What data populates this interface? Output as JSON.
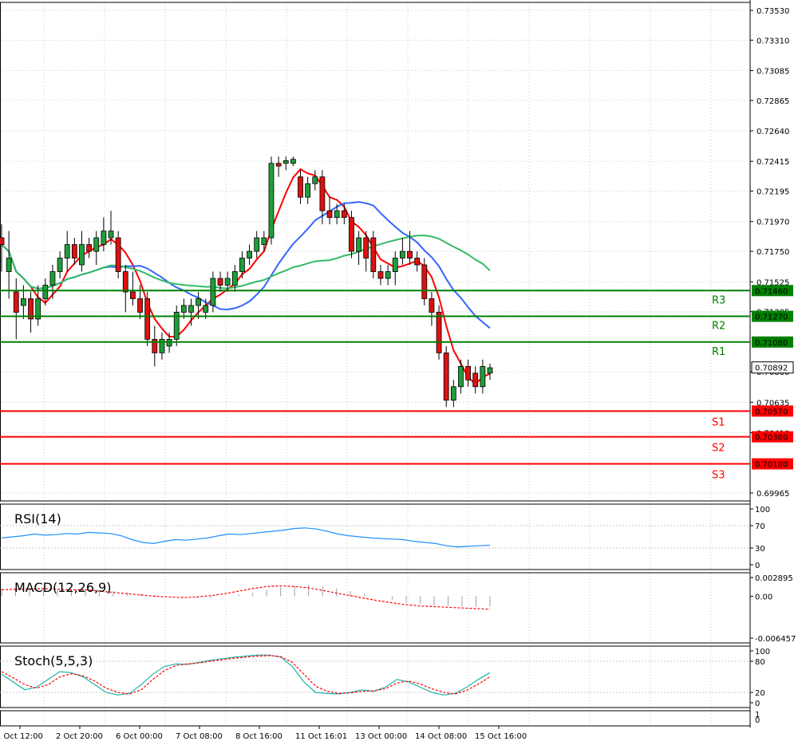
{
  "chart_data": {
    "type": "candlestick",
    "price_axis_ticks": [
      "0.73530",
      "0.73310",
      "0.73085",
      "0.72865",
      "0.72640",
      "0.72415",
      "0.72195",
      "0.71970",
      "0.71750",
      "0.71525",
      "0.71305",
      "0.70860",
      "0.70635",
      "0.70410",
      "0.69965"
    ],
    "price_range": [
      0.69965,
      0.7353
    ],
    "time_labels": [
      "1 Oct 12:00",
      "2 Oct 20:00",
      "6 Oct 00:00",
      "7 Oct 08:00",
      "8 Oct 16:00",
      "11 Oct 16:01",
      "13 Oct 00:00",
      "14 Oct 08:00",
      "15 Oct 16:00"
    ],
    "current_price": "0.70892",
    "levels": [
      {
        "name": "R3",
        "value": "0.71460",
        "color": "#008000"
      },
      {
        "name": "R2",
        "value": "0.71270",
        "color": "#008000"
      },
      {
        "name": "R1",
        "value": "0.71080",
        "color": "#008000"
      },
      {
        "name": "S1",
        "value": "0.70570",
        "color": "#ff0000"
      },
      {
        "name": "S2",
        "value": "0.70380",
        "color": "#ff0000"
      },
      {
        "name": "S3",
        "value": "0.70180",
        "color": "#ff0000"
      }
    ],
    "candles": [
      [
        0.7185,
        0.718,
        0.716,
        0.7195
      ],
      [
        0.716,
        0.717,
        0.714,
        0.719
      ],
      [
        0.7145,
        0.713,
        0.711,
        0.7155
      ],
      [
        0.7135,
        0.714,
        0.7125,
        0.715
      ],
      [
        0.714,
        0.7125,
        0.7115,
        0.7145
      ],
      [
        0.7125,
        0.714,
        0.712,
        0.715
      ],
      [
        0.714,
        0.715,
        0.7135,
        0.7155
      ],
      [
        0.715,
        0.716,
        0.714,
        0.7165
      ],
      [
        0.716,
        0.717,
        0.7155,
        0.7175
      ],
      [
        0.717,
        0.718,
        0.716,
        0.719
      ],
      [
        0.718,
        0.717,
        0.7165,
        0.7185
      ],
      [
        0.7165,
        0.718,
        0.716,
        0.719
      ],
      [
        0.718,
        0.7175,
        0.717,
        0.7185
      ],
      [
        0.7175,
        0.7185,
        0.7165,
        0.719
      ],
      [
        0.718,
        0.719,
        0.7175,
        0.72
      ],
      [
        0.7185,
        0.719,
        0.718,
        0.7205
      ],
      [
        0.7185,
        0.716,
        0.7155,
        0.719
      ],
      [
        0.716,
        0.7145,
        0.713,
        0.7165
      ],
      [
        0.7145,
        0.714,
        0.7135,
        0.716
      ],
      [
        0.714,
        0.713,
        0.7125,
        0.715
      ],
      [
        0.714,
        0.711,
        0.7105,
        0.7145
      ],
      [
        0.711,
        0.71,
        0.709,
        0.712
      ],
      [
        0.71,
        0.711,
        0.7095,
        0.7115
      ],
      [
        0.7105,
        0.711,
        0.71,
        0.7115
      ],
      [
        0.711,
        0.713,
        0.7105,
        0.7135
      ],
      [
        0.713,
        0.7135,
        0.7125,
        0.714
      ],
      [
        0.713,
        0.7135,
        0.712,
        0.714
      ],
      [
        0.7135,
        0.714,
        0.7125,
        0.7145
      ],
      [
        0.713,
        0.7135,
        0.7125,
        0.714
      ],
      [
        0.7135,
        0.7155,
        0.713,
        0.716
      ],
      [
        0.7155,
        0.715,
        0.7145,
        0.716
      ],
      [
        0.715,
        0.7155,
        0.7145,
        0.716
      ],
      [
        0.715,
        0.716,
        0.7145,
        0.7165
      ],
      [
        0.716,
        0.717,
        0.7155,
        0.7175
      ],
      [
        0.717,
        0.7175,
        0.7165,
        0.718
      ],
      [
        0.7175,
        0.7185,
        0.717,
        0.719
      ],
      [
        0.718,
        0.7185,
        0.7175,
        0.719
      ],
      [
        0.7185,
        0.724,
        0.718,
        0.7245
      ],
      [
        0.724,
        0.7238,
        0.723,
        0.7245
      ],
      [
        0.724,
        0.7242,
        0.7235,
        0.7245
      ],
      [
        0.724,
        0.7243,
        0.7238,
        0.7245
      ],
      [
        0.723,
        0.7215,
        0.721,
        0.7235
      ],
      [
        0.7215,
        0.7225,
        0.721,
        0.723
      ],
      [
        0.7225,
        0.723,
        0.722,
        0.7235
      ],
      [
        0.723,
        0.7205,
        0.7195,
        0.7235
      ],
      [
        0.7205,
        0.72,
        0.7195,
        0.7215
      ],
      [
        0.72,
        0.7205,
        0.7195,
        0.721
      ],
      [
        0.7205,
        0.72,
        0.7195,
        0.721
      ],
      [
        0.72,
        0.7175,
        0.717,
        0.7205
      ],
      [
        0.7175,
        0.7185,
        0.7165,
        0.719
      ],
      [
        0.7185,
        0.717,
        0.716,
        0.719
      ],
      [
        0.7185,
        0.716,
        0.7155,
        0.719
      ],
      [
        0.716,
        0.7155,
        0.715,
        0.7165
      ],
      [
        0.7155,
        0.716,
        0.715,
        0.7165
      ],
      [
        0.716,
        0.717,
        0.715,
        0.7175
      ],
      [
        0.717,
        0.7175,
        0.7165,
        0.7185
      ],
      [
        0.7175,
        0.717,
        0.7165,
        0.719
      ],
      [
        0.717,
        0.7165,
        0.716,
        0.7175
      ],
      [
        0.7165,
        0.714,
        0.7135,
        0.717
      ],
      [
        0.714,
        0.713,
        0.712,
        0.7145
      ],
      [
        0.713,
        0.71,
        0.7095,
        0.7135
      ],
      [
        0.71,
        0.7065,
        0.706,
        0.7105
      ],
      [
        0.7065,
        0.7075,
        0.706,
        0.708
      ],
      [
        0.7075,
        0.709,
        0.707,
        0.7095
      ],
      [
        0.709,
        0.708,
        0.7075,
        0.7095
      ],
      [
        0.7085,
        0.7075,
        0.707,
        0.709
      ],
      [
        0.7075,
        0.709,
        0.707,
        0.7095
      ],
      [
        0.7085,
        0.7089,
        0.708,
        0.7092
      ]
    ],
    "indicators": [
      {
        "name": "RSI(14)",
        "scale_labels": [
          "100",
          "70",
          "30",
          "0"
        ],
        "range": [
          0,
          100
        ],
        "values": [
          48,
          50,
          52,
          55,
          53,
          54,
          56,
          55,
          58,
          57,
          56,
          52,
          45,
          40,
          38,
          42,
          45,
          44,
          46,
          48,
          52,
          55,
          54,
          56,
          58,
          60,
          62,
          65,
          66,
          64,
          60,
          55,
          52,
          50,
          48,
          47,
          46,
          45,
          42,
          40,
          38,
          34,
          32,
          33,
          34,
          35
        ]
      },
      {
        "name": "MACD(12,26,9)",
        "scale_labels": [
          "0.002895",
          "0.00",
          "-0.006457"
        ],
        "range": [
          -0.006457,
          0.002895
        ],
        "histogram": [
          0.0012,
          0.0011,
          0.0012,
          0.0013,
          0.001,
          0.0009,
          0.0011,
          0.001,
          0.0008,
          0.0006,
          0.0004,
          0.0002,
          0.0,
          -0.0002,
          -0.0003,
          -0.0002,
          0.0,
          0.0003,
          0.0006,
          0.001,
          0.0014,
          0.0016,
          0.0018,
          0.0016,
          0.0012,
          0.0008,
          0.0004,
          0.0,
          -0.0005,
          -0.001,
          -0.0012,
          -0.0014,
          -0.0015,
          -0.0016,
          -0.0016,
          -0.0016
        ],
        "signal": [
          0.001,
          0.0011,
          0.0011,
          0.0012,
          0.0011,
          0.001,
          0.001,
          0.0008,
          0.0006,
          0.0004,
          0.0002,
          0.0,
          -0.0001,
          -0.0002,
          -0.0001,
          0.0001,
          0.0004,
          0.0008,
          0.0012,
          0.0015,
          0.0016,
          0.0015,
          0.0013,
          0.0009,
          0.0005,
          0.0001,
          -0.0003,
          -0.0007,
          -0.001,
          -0.0013,
          -0.0015,
          -0.0016,
          -0.0017,
          -0.0018,
          -0.0019,
          -0.002
        ]
      },
      {
        "name": "Stoch(5,5,3)",
        "scale_labels": [
          "100",
          "80",
          "20",
          "0"
        ],
        "range": [
          0,
          100
        ],
        "k": [
          55,
          40,
          25,
          30,
          45,
          60,
          58,
          50,
          35,
          20,
          15,
          18,
          35,
          55,
          70,
          75,
          74,
          78,
          82,
          85,
          88,
          90,
          92,
          92,
          88,
          70,
          40,
          20,
          18,
          17,
          20,
          25,
          22,
          30,
          45,
          40,
          30,
          20,
          15,
          18,
          30,
          45,
          58
        ],
        "d": [
          60,
          48,
          35,
          28,
          35,
          50,
          56,
          52,
          42,
          28,
          20,
          17,
          25,
          45,
          62,
          72,
          75,
          77,
          80,
          83,
          86,
          88,
          90,
          91,
          89,
          78,
          55,
          32,
          22,
          18,
          19,
          22,
          23,
          27,
          38,
          42,
          36,
          27,
          20,
          17,
          24,
          36,
          50
        ]
      }
    ]
  }
}
